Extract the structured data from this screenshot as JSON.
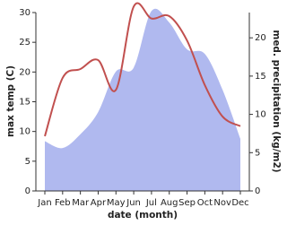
{
  "chart_data": {
    "type": "line_area",
    "x_label": "date (month)",
    "y_label": "max temp (C)",
    "y2_label": "med. precipitation (kg/m2)",
    "categories": [
      "Jan",
      "Feb",
      "Mar",
      "Apr",
      "May",
      "Jun",
      "Jul",
      "Aug",
      "Sep",
      "Oct",
      "Nov",
      "Dec"
    ],
    "series": [
      {
        "name": "max temp",
        "color": "#c1504f",
        "kind": "line",
        "values": [
          9.2,
          19,
          20.5,
          22,
          17,
          31,
          29,
          29.4,
          25.3,
          17.8,
          12.5,
          10.9
        ]
      },
      {
        "name": "med. precipitation",
        "color": "#b0b9ef",
        "kind": "area",
        "axis": "y2",
        "values": [
          6.5,
          5.6,
          7.4,
          10.3,
          15.6,
          16.1,
          23.5,
          22,
          18.5,
          17.9,
          13.2,
          6.8
        ]
      }
    ],
    "ylim": [
      0,
      30
    ],
    "yticks": [
      0,
      5,
      10,
      15,
      20,
      25,
      30
    ],
    "y2lim": [
      0,
      23.3
    ],
    "y2ticks": [
      0,
      5,
      10,
      15,
      20
    ]
  }
}
